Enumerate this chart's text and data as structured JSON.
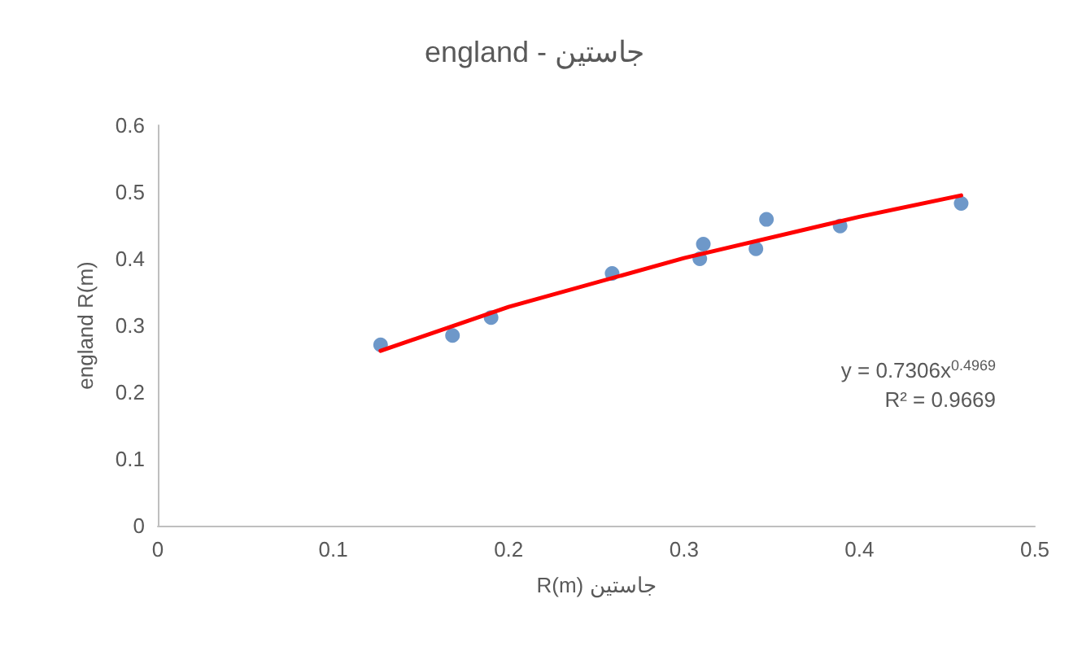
{
  "chart_data": {
    "type": "scatter",
    "title": "england - جاستين",
    "xlabel": "R(m) جاستين",
    "ylabel": "england R(m)",
    "xlim": [
      0,
      0.5
    ],
    "xticks": [
      0,
      0.1,
      0.2,
      0.3,
      0.4,
      0.5
    ],
    "ylim": [
      0,
      0.6
    ],
    "yticks": [
      0,
      0.1,
      0.2,
      0.3,
      0.4,
      0.5,
      0.6
    ],
    "series": [
      {
        "color": "#4a7ebb",
        "marker": "circle",
        "x": [
          0.127,
          0.168,
          0.19,
          0.259,
          0.309,
          0.311,
          0.341,
          0.347,
          0.389,
          0.458
        ],
        "values": [
          0.271,
          0.285,
          0.312,
          0.378,
          0.4,
          0.422,
          0.415,
          0.459,
          0.449,
          0.483
        ]
      },
      {
        "type": "line",
        "color": "#ff0000",
        "marker": "none",
        "x": [
          0.127,
          0.2,
          0.3,
          0.4,
          0.458
        ],
        "values": [
          0.262,
          0.328,
          0.401,
          0.463,
          0.495
        ]
      }
    ],
    "annotations": [
      "y = 0.7306x$^{0.4969}$",
      "R² = 0.9669"
    ]
  }
}
